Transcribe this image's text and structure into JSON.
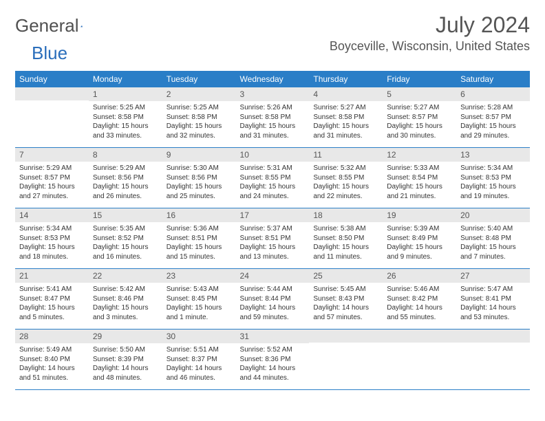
{
  "logo": {
    "part1": "General",
    "part2": "Blue"
  },
  "title": "July 2024",
  "location": "Boyceville, Wisconsin, United States",
  "colors": {
    "header_bg": "#2a7ec7",
    "daynum_bg": "#e8e8e8",
    "border": "#2a7ec7"
  },
  "weekdays": [
    "Sunday",
    "Monday",
    "Tuesday",
    "Wednesday",
    "Thursday",
    "Friday",
    "Saturday"
  ],
  "weeks": [
    [
      null,
      {
        "d": "1",
        "sr": "5:25 AM",
        "ss": "8:58 PM",
        "dl": "15 hours and 33 minutes."
      },
      {
        "d": "2",
        "sr": "5:25 AM",
        "ss": "8:58 PM",
        "dl": "15 hours and 32 minutes."
      },
      {
        "d": "3",
        "sr": "5:26 AM",
        "ss": "8:58 PM",
        "dl": "15 hours and 31 minutes."
      },
      {
        "d": "4",
        "sr": "5:27 AM",
        "ss": "8:58 PM",
        "dl": "15 hours and 31 minutes."
      },
      {
        "d": "5",
        "sr": "5:27 AM",
        "ss": "8:57 PM",
        "dl": "15 hours and 30 minutes."
      },
      {
        "d": "6",
        "sr": "5:28 AM",
        "ss": "8:57 PM",
        "dl": "15 hours and 29 minutes."
      }
    ],
    [
      {
        "d": "7",
        "sr": "5:29 AM",
        "ss": "8:57 PM",
        "dl": "15 hours and 27 minutes."
      },
      {
        "d": "8",
        "sr": "5:29 AM",
        "ss": "8:56 PM",
        "dl": "15 hours and 26 minutes."
      },
      {
        "d": "9",
        "sr": "5:30 AM",
        "ss": "8:56 PM",
        "dl": "15 hours and 25 minutes."
      },
      {
        "d": "10",
        "sr": "5:31 AM",
        "ss": "8:55 PM",
        "dl": "15 hours and 24 minutes."
      },
      {
        "d": "11",
        "sr": "5:32 AM",
        "ss": "8:55 PM",
        "dl": "15 hours and 22 minutes."
      },
      {
        "d": "12",
        "sr": "5:33 AM",
        "ss": "8:54 PM",
        "dl": "15 hours and 21 minutes."
      },
      {
        "d": "13",
        "sr": "5:34 AM",
        "ss": "8:53 PM",
        "dl": "15 hours and 19 minutes."
      }
    ],
    [
      {
        "d": "14",
        "sr": "5:34 AM",
        "ss": "8:53 PM",
        "dl": "15 hours and 18 minutes."
      },
      {
        "d": "15",
        "sr": "5:35 AM",
        "ss": "8:52 PM",
        "dl": "15 hours and 16 minutes."
      },
      {
        "d": "16",
        "sr": "5:36 AM",
        "ss": "8:51 PM",
        "dl": "15 hours and 15 minutes."
      },
      {
        "d": "17",
        "sr": "5:37 AM",
        "ss": "8:51 PM",
        "dl": "15 hours and 13 minutes."
      },
      {
        "d": "18",
        "sr": "5:38 AM",
        "ss": "8:50 PM",
        "dl": "15 hours and 11 minutes."
      },
      {
        "d": "19",
        "sr": "5:39 AM",
        "ss": "8:49 PM",
        "dl": "15 hours and 9 minutes."
      },
      {
        "d": "20",
        "sr": "5:40 AM",
        "ss": "8:48 PM",
        "dl": "15 hours and 7 minutes."
      }
    ],
    [
      {
        "d": "21",
        "sr": "5:41 AM",
        "ss": "8:47 PM",
        "dl": "15 hours and 5 minutes."
      },
      {
        "d": "22",
        "sr": "5:42 AM",
        "ss": "8:46 PM",
        "dl": "15 hours and 3 minutes."
      },
      {
        "d": "23",
        "sr": "5:43 AM",
        "ss": "8:45 PM",
        "dl": "15 hours and 1 minute."
      },
      {
        "d": "24",
        "sr": "5:44 AM",
        "ss": "8:44 PM",
        "dl": "14 hours and 59 minutes."
      },
      {
        "d": "25",
        "sr": "5:45 AM",
        "ss": "8:43 PM",
        "dl": "14 hours and 57 minutes."
      },
      {
        "d": "26",
        "sr": "5:46 AM",
        "ss": "8:42 PM",
        "dl": "14 hours and 55 minutes."
      },
      {
        "d": "27",
        "sr": "5:47 AM",
        "ss": "8:41 PM",
        "dl": "14 hours and 53 minutes."
      }
    ],
    [
      {
        "d": "28",
        "sr": "5:49 AM",
        "ss": "8:40 PM",
        "dl": "14 hours and 51 minutes."
      },
      {
        "d": "29",
        "sr": "5:50 AM",
        "ss": "8:39 PM",
        "dl": "14 hours and 48 minutes."
      },
      {
        "d": "30",
        "sr": "5:51 AM",
        "ss": "8:37 PM",
        "dl": "14 hours and 46 minutes."
      },
      {
        "d": "31",
        "sr": "5:52 AM",
        "ss": "8:36 PM",
        "dl": "14 hours and 44 minutes."
      },
      null,
      null,
      null
    ]
  ],
  "labels": {
    "sunrise": "Sunrise:",
    "sunset": "Sunset:",
    "daylight": "Daylight:"
  }
}
